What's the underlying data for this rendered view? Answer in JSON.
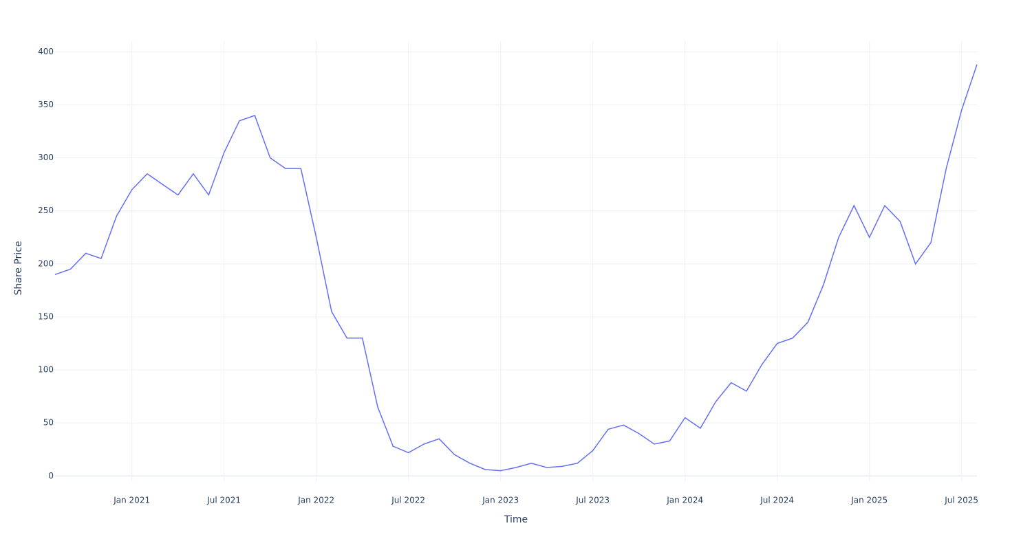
{
  "chart_data": {
    "type": "line",
    "x_label": "Time",
    "y_label": "Share Price",
    "x": [
      "2020-08",
      "2020-09",
      "2020-10",
      "2020-11",
      "2020-12",
      "2021-01",
      "2021-02",
      "2021-03",
      "2021-04",
      "2021-05",
      "2021-06",
      "2021-07",
      "2021-08",
      "2021-09",
      "2021-10",
      "2021-11",
      "2021-12",
      "2022-01",
      "2022-02",
      "2022-03",
      "2022-04",
      "2022-05",
      "2022-06",
      "2022-07",
      "2022-08",
      "2022-09",
      "2022-10",
      "2022-11",
      "2022-12",
      "2023-01",
      "2023-02",
      "2023-03",
      "2023-04",
      "2023-05",
      "2023-06",
      "2023-07",
      "2023-08",
      "2023-09",
      "2023-10",
      "2023-11",
      "2023-12",
      "2024-01",
      "2024-02",
      "2024-03",
      "2024-04",
      "2024-05",
      "2024-06",
      "2024-07",
      "2024-08",
      "2024-09",
      "2024-10",
      "2024-11",
      "2024-12",
      "2025-01",
      "2025-02",
      "2025-03",
      "2025-04",
      "2025-05",
      "2025-06",
      "2025-07",
      "2025-08"
    ],
    "series": [
      {
        "name": "Share Price",
        "color": "#636efa",
        "values": [
          190,
          195,
          210,
          205,
          245,
          270,
          285,
          275,
          265,
          285,
          265,
          305,
          335,
          340,
          300,
          290,
          290,
          225,
          155,
          130,
          130,
          65,
          28,
          22,
          30,
          35,
          20,
          12,
          6,
          5,
          8,
          12,
          8,
          9,
          12,
          24,
          44,
          48,
          40,
          30,
          33,
          55,
          45,
          70,
          88,
          80,
          105,
          125,
          130,
          145,
          180,
          225,
          255,
          225,
          255,
          240,
          200,
          220,
          290,
          345,
          388
        ]
      }
    ],
    "xlim": [
      "2020-08",
      "2025-08"
    ],
    "xticks": [
      {
        "value": "2021-01",
        "label": "Jan 2021"
      },
      {
        "value": "2021-07",
        "label": "Jul 2021"
      },
      {
        "value": "2022-01",
        "label": "Jan 2022"
      },
      {
        "value": "2022-07",
        "label": "Jul 2022"
      },
      {
        "value": "2023-01",
        "label": "Jan 2023"
      },
      {
        "value": "2023-07",
        "label": "Jul 2023"
      },
      {
        "value": "2024-01",
        "label": "Jan 2024"
      },
      {
        "value": "2024-07",
        "label": "Jul 2024"
      },
      {
        "value": "2025-01",
        "label": "Jan 2025"
      },
      {
        "value": "2025-07",
        "label": "Jul 2025"
      }
    ],
    "ylim": [
      -5,
      410
    ],
    "yticks": [
      0,
      50,
      100,
      150,
      200,
      250,
      300,
      350,
      400
    ],
    "grid": true
  }
}
